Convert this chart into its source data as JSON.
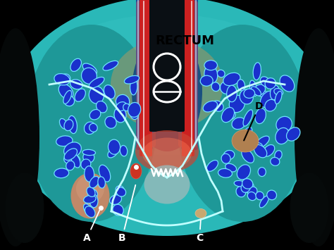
{
  "rectum_label": "RECTUM",
  "rectum_label_color": "#000000",
  "rectum_label_fontsize": 13,
  "label_A": "A",
  "label_B": "B",
  "label_C": "C",
  "label_D": "D",
  "fig_width": 4.74,
  "fig_height": 3.55,
  "dpi": 100,
  "bg_color": "#000000",
  "teal_main": "#2ab5b5",
  "teal_dark": "#1a7a8a",
  "blue_node_fill": "#1a2fcc",
  "blue_node_edge": "#60e0ff",
  "red_wall": "#cc2222",
  "pink_glow": "#ff6655",
  "white_line": "#ffffff",
  "bone_color": "#080808",
  "abscess_A_color": "#c08868",
  "abscess_B_color": "#cc5544",
  "abscess_C_color": "#c8a870",
  "abscess_D_color": "#b08050",
  "gray_anal": "#8aadad",
  "blue_mesorectum": "#2255aa"
}
